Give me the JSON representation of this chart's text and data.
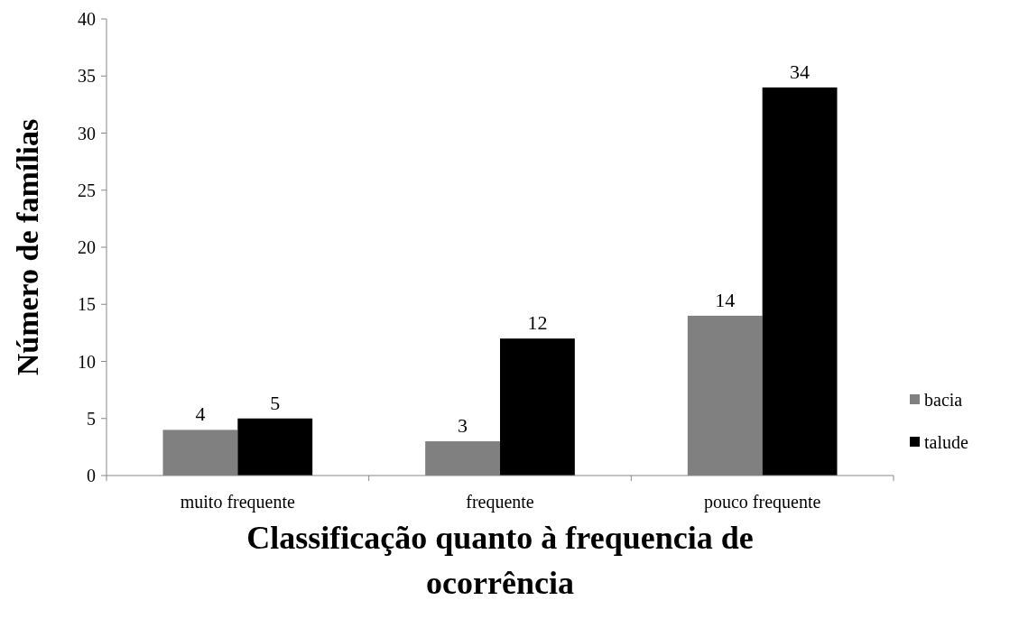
{
  "chart_data": {
    "type": "bar",
    "xlabel": "Classificação quanto à frequencia de ocorrência",
    "ylabel": "Número de famílias",
    "categories": [
      "muito frequente",
      "frequente",
      "pouco frequente"
    ],
    "series": [
      {
        "name": "bacia",
        "color": "#808080",
        "values": [
          4,
          3,
          14
        ]
      },
      {
        "name": "talude",
        "color": "#000000",
        "values": [
          5,
          12,
          34
        ]
      }
    ],
    "ylim": [
      0,
      40
    ],
    "yticks": [
      0,
      5,
      10,
      15,
      20,
      25,
      30,
      35,
      40
    ],
    "data_labels": true,
    "grid": false,
    "legend": "right"
  }
}
